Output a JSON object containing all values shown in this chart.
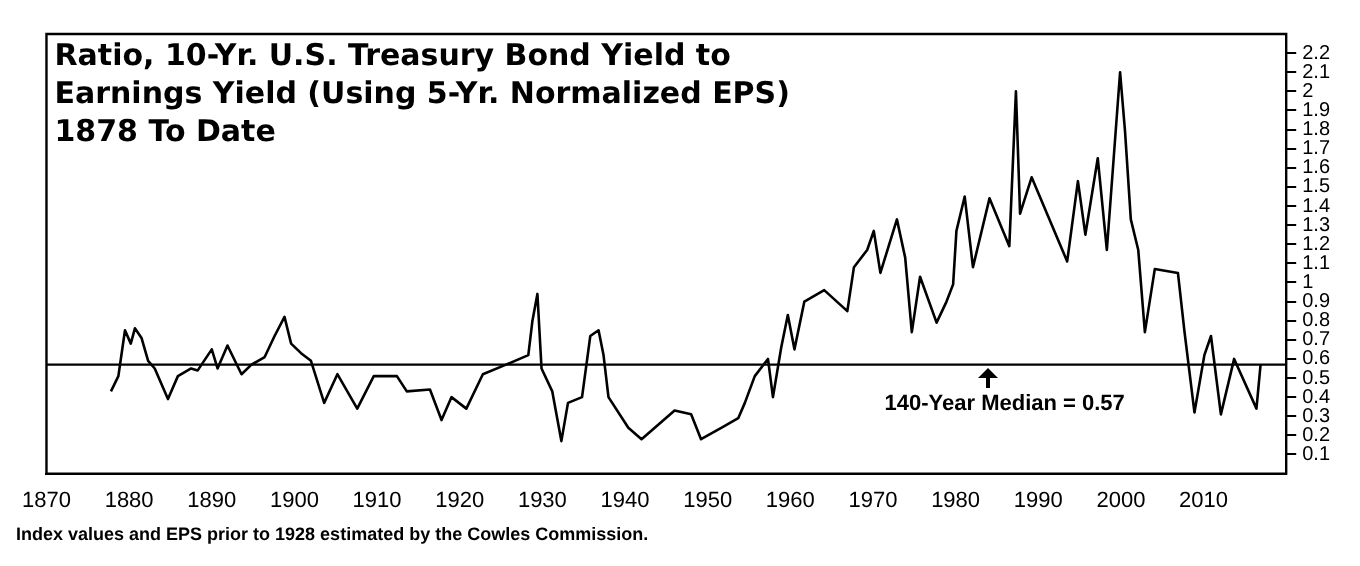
{
  "chart_data": {
    "type": "line",
    "title": "Ratio, 10-Yr. U.S. Treasury Bond Yield to\nEarnings Yield (Using 5-Yr. Normalized EPS)\n1878 To Date",
    "x": [
      1877.8,
      1878.7,
      1879.5,
      1880.2,
      1880.7,
      1881.5,
      1882.3,
      1883.1,
      1884.7,
      1885.9,
      1887.5,
      1888.3,
      1890,
      1890.7,
      1891.9,
      1893.6,
      1894.8,
      1896.4,
      1897.6,
      1898.8,
      1899.6,
      1900.8,
      1902,
      1903.6,
      1905.2,
      1907.6,
      1909.6,
      1912.4,
      1913.6,
      1916.4,
      1917.8,
      1919,
      1920.8,
      1922.8,
      1925.6,
      1928.3,
      1928.8,
      1929.4,
      1929.9,
      1931.2,
      1932.3,
      1933.1,
      1934.8,
      1935.8,
      1936.8,
      1937.4,
      1938,
      1940.4,
      1942,
      1943.6,
      1946,
      1948,
      1949.2,
      1951.7,
      1953.7,
      1954.5,
      1955.7,
      1957.3,
      1957.9,
      1958.9,
      1959.7,
      1960.5,
      1961.7,
      1964.1,
      1966.9,
      1967.7,
      1969.3,
      1970.1,
      1970.9,
      1972.9,
      1973.9,
      1974.7,
      1975.7,
      1977.7,
      1978.9,
      1979.7,
      1980.1,
      1981.1,
      1982.1,
      1984.1,
      1986.5,
      1987.3,
      1987.8,
      1989.2,
      1993.5,
      1994.8,
      1995.7,
      1997.2,
      1998.3,
      1999.9,
      2000.5,
      2001.2,
      2002.1,
      2002.9,
      2004.1,
      2006.9,
      2007.7,
      2008.9,
      2010.1,
      2010.9,
      2012.1,
      2013.7,
      2016.4,
      2016.9
    ],
    "series": [
      {
        "color": "#000000",
        "values": [
          0.43,
          0.51,
          0.75,
          0.68,
          0.76,
          0.71,
          0.59,
          0.55,
          0.39,
          0.51,
          0.55,
          0.54,
          0.65,
          0.55,
          0.67,
          0.52,
          0.57,
          0.61,
          0.72,
          0.82,
          0.68,
          0.63,
          0.59,
          0.37,
          0.52,
          0.34,
          0.51,
          0.51,
          0.43,
          0.44,
          0.28,
          0.4,
          0.34,
          0.52,
          0.57,
          0.62,
          0.8,
          0.94,
          0.55,
          0.43,
          0.17,
          0.37,
          0.4,
          0.72,
          0.75,
          0.62,
          0.4,
          0.24,
          0.18,
          0.24,
          0.33,
          0.31,
          0.18,
          0.24,
          0.29,
          0.37,
          0.51,
          0.6,
          0.4,
          0.66,
          0.83,
          0.65,
          0.9,
          0.96,
          0.85,
          1.08,
          1.17,
          1.27,
          1.05,
          1.33,
          1.13,
          0.74,
          1.03,
          0.79,
          0.9,
          0.99,
          1.27,
          1.45,
          1.08,
          1.44,
          1.19,
          2.0,
          1.36,
          1.55,
          1.11,
          1.53,
          1.25,
          1.65,
          1.17,
          2.1,
          1.79,
          1.33,
          1.17,
          0.74,
          1.07,
          1.05,
          0.74,
          0.32,
          0.62,
          0.72,
          0.31,
          0.6,
          0.34,
          0.57
        ]
      }
    ],
    "xlim": [
      1870,
      2020
    ],
    "xticks": [
      1870,
      1880,
      1890,
      1900,
      1910,
      1920,
      1930,
      1940,
      1950,
      1960,
      1970,
      1980,
      1990,
      2000,
      2010
    ],
    "ylim": [
      0,
      2.3
    ],
    "yticks": [
      0.1,
      0.2,
      0.3,
      0.4,
      0.5,
      0.6,
      0.7,
      0.8,
      0.9,
      1.0,
      1.1,
      1.2,
      1.3,
      1.4,
      1.5,
      1.6,
      1.7,
      1.8,
      1.9,
      2.0,
      2.1,
      2.2
    ],
    "ref_lines": [
      {
        "axis": "y",
        "value": 0.57,
        "color": "#000000"
      }
    ],
    "annotations": [
      {
        "text": "140-Year Median = 0.57",
        "x": 1984,
        "y": 0.57
      },
      "Index values and EPS prior to 1928 estimated by the Cowles Commission."
    ],
    "grid": false,
    "legend": false,
    "marker": "none",
    "line_style": "solid"
  }
}
